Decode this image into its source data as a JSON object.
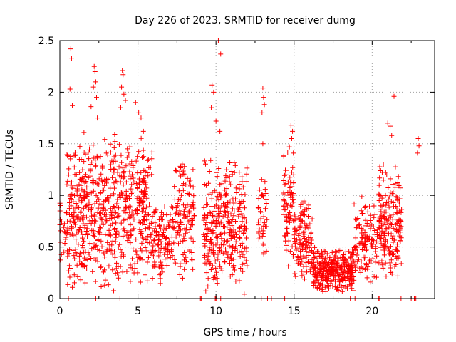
{
  "chart_data": {
    "type": "scatter",
    "title": "Day 226 of 2023, SRMTID for receiver dumg",
    "xlabel": "GPS time / hours",
    "ylabel": "SRMTID / TECUs",
    "xlim": [
      0,
      24
    ],
    "ylim": [
      0,
      2.5
    ],
    "x_ticks": [
      0,
      5,
      10,
      15,
      20
    ],
    "x_tick_labels": [
      "0",
      "5",
      "10",
      "15",
      "20"
    ],
    "y_ticks": [
      0,
      0.5,
      1,
      1.5,
      2,
      2.5
    ],
    "y_tick_labels": [
      "0",
      "0.5",
      "1",
      "1.5",
      "2",
      "2.5"
    ],
    "grid": true,
    "marker": "+",
    "color": "#ff0000",
    "series": [
      {
        "name": "SRMTID",
        "segments": [
          {
            "x0": 0.0,
            "x1": 0.45,
            "lo": 0.3,
            "hi": 1.0,
            "n": 20
          },
          {
            "x0": 0.45,
            "x1": 1.2,
            "lo": 0.0,
            "hi": 1.6,
            "n": 90
          },
          {
            "x0": 1.2,
            "x1": 3.8,
            "lo": 0.0,
            "hi": 1.7,
            "n": 330
          },
          {
            "x0": 3.8,
            "x1": 5.9,
            "lo": 0.1,
            "hi": 1.6,
            "n": 240
          },
          {
            "x0": 5.9,
            "x1": 7.2,
            "lo": 0.1,
            "hi": 1.0,
            "n": 110
          },
          {
            "x0": 7.2,
            "x1": 8.6,
            "lo": 0.15,
            "hi": 1.4,
            "n": 130
          },
          {
            "x0": 9.2,
            "x1": 12.0,
            "lo": 0.0,
            "hi": 1.4,
            "n": 330
          },
          {
            "x0": 12.7,
            "x1": 13.3,
            "lo": 0.3,
            "hi": 1.2,
            "n": 45
          },
          {
            "x0": 14.3,
            "x1": 15.0,
            "lo": 0.3,
            "hi": 1.5,
            "n": 80
          },
          {
            "x0": 15.0,
            "x1": 16.2,
            "lo": 0.1,
            "hi": 1.0,
            "n": 120
          },
          {
            "x0": 16.2,
            "x1": 18.8,
            "lo": 0.05,
            "hi": 0.5,
            "n": 330
          },
          {
            "x0": 18.8,
            "x1": 20.4,
            "lo": 0.1,
            "hi": 1.0,
            "n": 130
          },
          {
            "x0": 20.4,
            "x1": 21.9,
            "lo": 0.15,
            "hi": 1.35,
            "n": 190
          }
        ],
        "extra_points": [
          [
            0.7,
            2.42
          ],
          [
            0.75,
            2.33
          ],
          [
            0.65,
            2.03
          ],
          [
            0.8,
            1.87
          ],
          [
            2.2,
            2.25
          ],
          [
            2.25,
            2.2
          ],
          [
            2.3,
            2.1
          ],
          [
            2.15,
            2.05
          ],
          [
            2.35,
            1.95
          ],
          [
            2.0,
            1.86
          ],
          [
            2.4,
            1.75
          ],
          [
            4.0,
            2.21
          ],
          [
            4.05,
            2.17
          ],
          [
            3.95,
            2.05
          ],
          [
            4.1,
            1.98
          ],
          [
            4.2,
            1.92
          ],
          [
            3.9,
            1.85
          ],
          [
            4.85,
            1.9
          ],
          [
            5.05,
            1.8
          ],
          [
            5.2,
            1.75
          ],
          [
            5.35,
            1.62
          ],
          [
            9.75,
            2.07
          ],
          [
            9.85,
            2.0
          ],
          [
            10.15,
            2.5
          ],
          [
            10.3,
            2.37
          ],
          [
            9.7,
            1.85
          ],
          [
            10.0,
            1.72
          ],
          [
            10.25,
            1.62
          ],
          [
            13.0,
            2.04
          ],
          [
            13.05,
            1.95
          ],
          [
            13.1,
            1.88
          ],
          [
            12.95,
            1.8
          ],
          [
            13.0,
            1.5
          ],
          [
            14.8,
            1.68
          ],
          [
            14.9,
            1.62
          ],
          [
            14.85,
            1.55
          ],
          [
            14.7,
            1.47
          ],
          [
            14.95,
            1.41
          ],
          [
            21.0,
            1.7
          ],
          [
            21.15,
            1.67
          ],
          [
            21.4,
            1.96
          ],
          [
            21.25,
            1.58
          ],
          [
            22.95,
            1.55
          ],
          [
            23.0,
            1.48
          ],
          [
            22.9,
            1.41
          ],
          [
            0.55,
            0.0
          ],
          [
            2.3,
            0.0
          ],
          [
            3.85,
            0.0
          ],
          [
            7.05,
            0.0
          ],
          [
            9.0,
            0.0
          ],
          [
            9.05,
            0.0
          ],
          [
            9.95,
            0.0
          ],
          [
            10.0,
            0.0
          ],
          [
            10.05,
            0.0
          ],
          [
            10.3,
            0.0
          ],
          [
            12.9,
            0.0
          ],
          [
            13.3,
            0.0
          ],
          [
            13.55,
            0.0
          ],
          [
            14.4,
            0.0
          ],
          [
            18.6,
            0.0
          ],
          [
            18.9,
            0.0
          ],
          [
            20.4,
            0.0
          ],
          [
            20.45,
            0.0
          ],
          [
            21.85,
            0.0
          ],
          [
            22.5,
            0.0
          ],
          [
            22.7,
            0.0
          ],
          [
            22.8,
            0.0
          ]
        ]
      }
    ]
  }
}
